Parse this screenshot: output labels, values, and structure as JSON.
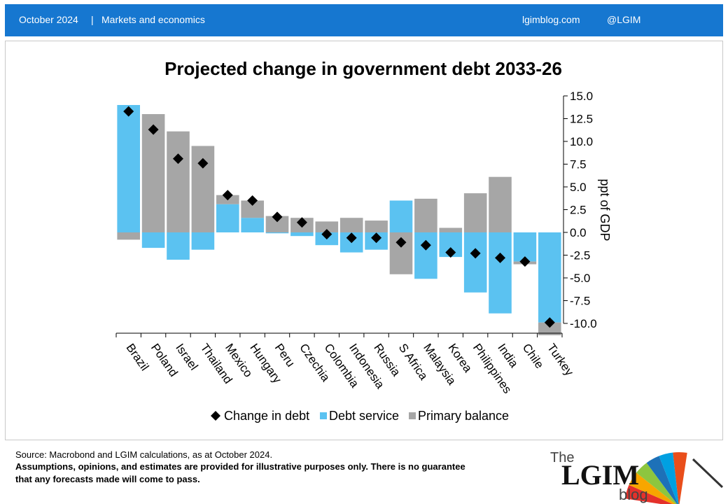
{
  "header": {
    "date": "October 2024",
    "separator": "|",
    "section": "Markets and economics",
    "site": "lgimblog.com",
    "handle": "@LGIM"
  },
  "chart_data": {
    "type": "bar",
    "title": "Projected change in government debt 2033-26",
    "ylabel": "ppt of GDP",
    "ylim": [
      -10,
      15
    ],
    "yticks": [
      "15.0",
      "12.5",
      "10.0",
      "7.5",
      "5.0",
      "2.5",
      "0.0",
      "-2.5",
      "-5.0",
      "-7.5",
      "-10.0"
    ],
    "categories": [
      "Brazil",
      "Poland",
      "Israel",
      "Thailand",
      "Mexico",
      "Hungary",
      "Peru",
      "Czechia",
      "Colombia",
      "Indonesia",
      "Russia",
      "S Africa",
      "Malaysia",
      "Korea",
      "Philippines",
      "India",
      "Chile",
      "Turkey"
    ],
    "series": [
      {
        "name": "Change in debt",
        "kind": "marker",
        "color": "#000000",
        "values": [
          13.3,
          11.3,
          8.1,
          7.6,
          4.1,
          3.5,
          1.7,
          1.1,
          -0.2,
          -0.6,
          -0.6,
          -1.1,
          -1.4,
          -2.2,
          -2.3,
          -2.8,
          -3.2,
          -9.9
        ]
      },
      {
        "name": "Debt service",
        "kind": "stacked-bar",
        "color": "#5bc2f1",
        "values": [
          14.0,
          -1.7,
          -3.0,
          -1.9,
          3.1,
          1.6,
          -0.1,
          -0.4,
          -1.4,
          -2.2,
          -1.9,
          3.5,
          -5.1,
          -2.7,
          -6.6,
          -8.9,
          -3.2,
          -9.9
        ]
      },
      {
        "name": "Primary balance",
        "kind": "stacked-bar",
        "color": "#a6a6a6",
        "values": [
          -0.8,
          13.0,
          11.1,
          9.5,
          1.0,
          1.9,
          1.8,
          1.6,
          1.2,
          1.6,
          1.3,
          -4.6,
          3.7,
          0.5,
          4.3,
          6.1,
          -0.3,
          -1.4
        ]
      }
    ],
    "legend_position": "bottom",
    "grid": false
  },
  "footer": {
    "source": "Source: Macrobond and LGIM  calculations, as at October 2024.",
    "disclaimer_1": "Assumptions,  opinions, and estimates are provided for illustrative purposes only. There is no guarantee",
    "disclaimer_2": "that any forecasts made will come to pass."
  },
  "logo": {
    "the": "The",
    "name": "LGIM",
    "blog": "blog",
    "colors": [
      "#e4312b",
      "#f7a600",
      "#8dc63f",
      "#1d71b8",
      "#00a0e1",
      "#e94e1b"
    ]
  }
}
